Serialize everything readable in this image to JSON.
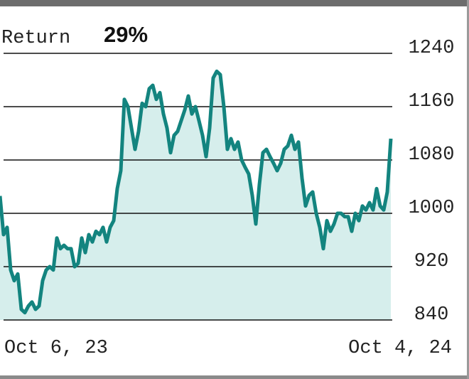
{
  "chart_data": {
    "type": "area",
    "title": "Return",
    "annotation": "29%",
    "categories": [
      "Oct 6, 23",
      null,
      null,
      null,
      null,
      null,
      null,
      null,
      null,
      null,
      null,
      null,
      null,
      null,
      null,
      null,
      null,
      null,
      null,
      null,
      null,
      null,
      null,
      null,
      null,
      null,
      null,
      null,
      null,
      null,
      null,
      null,
      null,
      null,
      null,
      null,
      null,
      null,
      null,
      null,
      null,
      null,
      null,
      null,
      null,
      null,
      null,
      null,
      null,
      null,
      null,
      null,
      null,
      null,
      null,
      null,
      null,
      null,
      null,
      null,
      null,
      null,
      null,
      null,
      null,
      null,
      null,
      null,
      null,
      null,
      null,
      null,
      null,
      null,
      null,
      null,
      null,
      null,
      null,
      null,
      null,
      null,
      null,
      null,
      null,
      null,
      null,
      null,
      null,
      null,
      null,
      null,
      null,
      null,
      null,
      null,
      null,
      null,
      null,
      null,
      null,
      null,
      null,
      null,
      null,
      null,
      null,
      null,
      null,
      null,
      "Oct 4, 24"
    ],
    "values": [
      1026,
      968,
      979,
      915,
      899,
      909,
      856,
      851,
      861,
      867,
      856,
      861,
      899,
      915,
      920,
      915,
      963,
      947,
      952,
      947,
      947,
      920,
      925,
      963,
      941,
      968,
      957,
      973,
      968,
      979,
      957,
      979,
      989,
      1037,
      1064,
      1171,
      1160,
      1128,
      1096,
      1123,
      1165,
      1160,
      1187,
      1192,
      1171,
      1181,
      1149,
      1128,
      1091,
      1117,
      1123,
      1139,
      1155,
      1176,
      1149,
      1160,
      1139,
      1117,
      1085,
      1128,
      1203,
      1213,
      1208,
      1160,
      1096,
      1112,
      1096,
      1107,
      1080,
      1069,
      1059,
      1027,
      984,
      1043,
      1091,
      1096,
      1085,
      1075,
      1064,
      1075,
      1096,
      1101,
      1117,
      1096,
      1107,
      1053,
      1011,
      1027,
      1032,
      1000,
      979,
      947,
      989,
      973,
      984,
      1000,
      1000,
      995,
      995,
      973,
      1000,
      989,
      1011,
      1005,
      1016,
      1005,
      1037,
      1011,
      1005,
      1032,
      1112
    ],
    "color": "#13847f",
    "fill_color": "#d6eeec",
    "ylim": [
      840,
      1240
    ],
    "yticks": [
      840,
      920,
      1000,
      1080,
      1160,
      1240
    ],
    "grid": true
  }
}
